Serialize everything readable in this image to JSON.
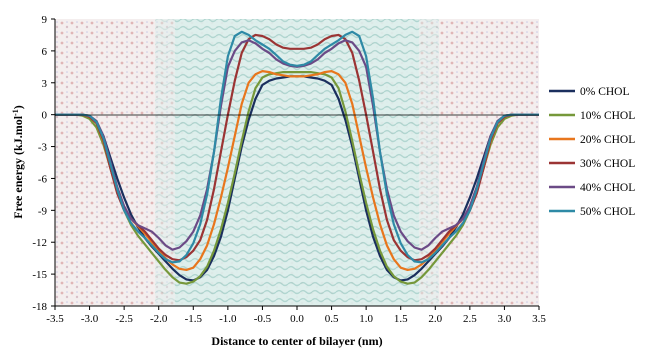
{
  "chart_data": {
    "type": "line",
    "xlabel": "Distance to center of bilayer (nm)",
    "ylabel_main": "Free energy (kJ.mol",
    "ylabel_sup": "-1",
    "ylabel_end": ")",
    "xlim": [
      -3.5,
      3.5
    ],
    "ylim": [
      -18,
      9
    ],
    "xticks": [
      -3.5,
      -3.0,
      -2.5,
      -2.0,
      -1.5,
      -1.0,
      -0.5,
      0.0,
      0.5,
      1.0,
      1.5,
      2.0,
      2.5,
      3.0,
      3.5
    ],
    "xtick_labels": [
      "-3.5",
      "-3.0",
      "-2.5",
      "-2.0",
      "-1.5",
      "-1.0",
      "-0.5",
      "0.0",
      "0.5",
      "1.0",
      "1.5",
      "2.0",
      "2.5",
      "3.0",
      "3.5"
    ],
    "yticks": [
      -18,
      -15,
      -12,
      -9,
      -6,
      -3,
      0,
      3,
      6,
      9
    ],
    "ytick_labels": [
      "-18",
      "-15",
      "-12",
      "-9",
      "-6",
      "-3",
      "0",
      "3",
      "6",
      "9"
    ],
    "grid": false,
    "legend_position": "right",
    "background": "membrane-snapshot",
    "series": [
      {
        "name": "0% CHOL",
        "color": "#1b2f5e",
        "x": [
          0,
          0.1,
          0.2,
          0.3,
          0.4,
          0.5,
          0.6,
          0.7,
          0.8,
          0.9,
          1.0,
          1.1,
          1.2,
          1.3,
          1.4,
          1.5,
          1.6,
          1.7,
          1.8,
          1.9,
          2.0,
          2.1,
          2.2,
          2.3,
          2.4,
          2.5,
          2.6,
          2.7,
          2.8,
          2.9,
          3.0,
          3.1,
          3.2,
          3.3,
          3.4,
          3.5
        ],
        "y": [
          3.6,
          3.6,
          3.5,
          3.4,
          3.2,
          2.8,
          1.5,
          -0.5,
          -3.0,
          -6.0,
          -9.0,
          -11.5,
          -13.3,
          -14.6,
          -15.3,
          -15.6,
          -15.5,
          -15.1,
          -14.5,
          -13.8,
          -13.1,
          -12.4,
          -11.6,
          -10.6,
          -9.4,
          -7.8,
          -6.0,
          -4.0,
          -2.0,
          -0.7,
          -0.2,
          0.0,
          0.0,
          0.0,
          0.0,
          0.0
        ]
      },
      {
        "name": "10% CHOL",
        "color": "#76983a",
        "x": [
          0,
          0.1,
          0.2,
          0.3,
          0.4,
          0.5,
          0.6,
          0.7,
          0.8,
          0.9,
          1.0,
          1.1,
          1.2,
          1.3,
          1.4,
          1.5,
          1.6,
          1.7,
          1.8,
          1.9,
          2.0,
          2.1,
          2.2,
          2.3,
          2.4,
          2.5,
          2.6,
          2.7,
          2.8,
          2.9,
          3.0,
          3.1,
          3.2,
          3.3,
          3.4,
          3.5
        ],
        "y": [
          4.0,
          4.0,
          4.0,
          3.9,
          3.8,
          3.5,
          2.5,
          0.3,
          -2.5,
          -5.5,
          -8.3,
          -10.8,
          -12.8,
          -14.3,
          -15.2,
          -15.7,
          -15.9,
          -15.8,
          -15.3,
          -14.6,
          -13.8,
          -13.0,
          -12.2,
          -11.4,
          -10.4,
          -9.0,
          -7.2,
          -5.0,
          -2.8,
          -1.2,
          -0.4,
          -0.1,
          0.0,
          0.0,
          0.0,
          0.0
        ]
      },
      {
        "name": "20% CHOL",
        "color": "#e8761d",
        "x": [
          0,
          0.1,
          0.2,
          0.3,
          0.4,
          0.5,
          0.6,
          0.7,
          0.8,
          0.9,
          1.0,
          1.1,
          1.2,
          1.3,
          1.4,
          1.5,
          1.6,
          1.7,
          1.8,
          1.9,
          2.0,
          2.1,
          2.2,
          2.3,
          2.4,
          2.5,
          2.6,
          2.7,
          2.8,
          2.9,
          3.0,
          3.1,
          3.2,
          3.3,
          3.4,
          3.5
        ],
        "y": [
          3.6,
          3.6,
          3.7,
          3.8,
          4.0,
          4.1,
          3.8,
          3.0,
          1.0,
          -2.0,
          -5.0,
          -7.8,
          -10.3,
          -12.3,
          -13.6,
          -14.4,
          -14.6,
          -14.5,
          -14.1,
          -13.5,
          -12.8,
          -12.0,
          -11.2,
          -10.5,
          -9.8,
          -8.8,
          -7.2,
          -5.0,
          -2.5,
          -0.8,
          -0.2,
          0.0,
          0.0,
          0.0,
          0.0,
          0.0
        ]
      },
      {
        "name": "30% CHOL",
        "color": "#9b3434",
        "x": [
          0,
          0.1,
          0.2,
          0.3,
          0.4,
          0.5,
          0.6,
          0.7,
          0.8,
          0.9,
          1.0,
          1.1,
          1.2,
          1.3,
          1.4,
          1.5,
          1.6,
          1.7,
          1.8,
          1.9,
          2.0,
          2.1,
          2.2,
          2.3,
          2.4,
          2.5,
          2.6,
          2.7,
          2.8,
          2.9,
          3.0,
          3.1,
          3.2,
          3.3,
          3.4,
          3.5
        ],
        "y": [
          6.2,
          6.2,
          6.3,
          6.6,
          7.1,
          7.4,
          7.5,
          7.1,
          5.8,
          3.2,
          0.0,
          -3.5,
          -7.0,
          -9.9,
          -11.8,
          -12.8,
          -13.4,
          -13.7,
          -13.6,
          -13.2,
          -12.6,
          -11.8,
          -11.0,
          -10.4,
          -9.8,
          -9.0,
          -7.4,
          -5.0,
          -2.4,
          -0.8,
          -0.2,
          0.0,
          0.0,
          0.0,
          0.0,
          0.0
        ]
      },
      {
        "name": "40% CHOL",
        "color": "#6b4a86",
        "x": [
          0,
          0.1,
          0.2,
          0.3,
          0.4,
          0.5,
          0.6,
          0.7,
          0.8,
          0.9,
          1.0,
          1.1,
          1.2,
          1.3,
          1.4,
          1.5,
          1.6,
          1.7,
          1.8,
          1.9,
          2.0,
          2.1,
          2.2,
          2.3,
          2.4,
          2.5,
          2.6,
          2.7,
          2.8,
          2.9,
          3.0,
          3.1,
          3.2,
          3.3,
          3.4,
          3.5
        ],
        "y": [
          4.5,
          4.6,
          4.8,
          5.2,
          5.8,
          6.2,
          6.7,
          7.0,
          6.8,
          6.0,
          4.5,
          0.8,
          -3.5,
          -7.0,
          -9.5,
          -11.0,
          -11.9,
          -12.5,
          -12.7,
          -12.3,
          -11.6,
          -11.0,
          -10.7,
          -10.4,
          -9.8,
          -8.6,
          -6.8,
          -4.4,
          -2.0,
          -0.6,
          -0.1,
          0.0,
          0.0,
          0.0,
          0.0,
          0.0
        ]
      },
      {
        "name": "50% CHOL",
        "color": "#2e8aa6",
        "x": [
          0,
          0.1,
          0.2,
          0.3,
          0.4,
          0.5,
          0.6,
          0.7,
          0.8,
          0.9,
          1.0,
          1.1,
          1.2,
          1.3,
          1.4,
          1.5,
          1.6,
          1.7,
          1.8,
          1.9,
          2.0,
          2.1,
          2.2,
          2.3,
          2.4,
          2.5,
          2.6,
          2.7,
          2.8,
          2.9,
          3.0,
          3.1,
          3.2,
          3.3,
          3.4,
          3.5
        ],
        "y": [
          4.6,
          4.7,
          5.0,
          5.6,
          6.2,
          6.6,
          7.0,
          7.5,
          7.8,
          7.4,
          5.5,
          1.5,
          -3.5,
          -7.5,
          -10.3,
          -12.1,
          -13.2,
          -13.8,
          -13.9,
          -13.6,
          -13.0,
          -12.3,
          -11.6,
          -11.0,
          -10.2,
          -9.0,
          -7.0,
          -4.6,
          -2.2,
          -0.7,
          -0.1,
          0.0,
          0.0,
          0.0,
          0.0,
          0.0
        ]
      }
    ]
  }
}
